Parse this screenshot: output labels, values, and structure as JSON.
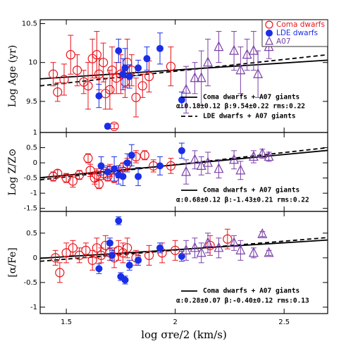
{
  "chart_data": [
    {
      "type": "scatter",
      "y_label": "Log Age (yr)",
      "xlim": [
        1.38,
        2.7
      ],
      "ylim": [
        9.1,
        10.55
      ],
      "xticks": [
        1.5,
        2,
        2.5
      ],
      "show_xtick_labels": false,
      "yticks": [
        9.5,
        10,
        10.5
      ],
      "legend": "upper right",
      "series": [
        {
          "name": "Coma dwarfs",
          "color": "#e8141c",
          "marker": "open-circle",
          "x": [
            1.44,
            1.46,
            1.49,
            1.52,
            1.55,
            1.58,
            1.6,
            1.62,
            1.64,
            1.65,
            1.67,
            1.68,
            1.7,
            1.71,
            1.73,
            1.75,
            1.77,
            1.78,
            1.8,
            1.82,
            1.85,
            1.88,
            1.98,
            1.72
          ],
          "y": [
            9.85,
            9.62,
            9.78,
            10.1,
            9.9,
            9.75,
            9.7,
            10.05,
            10.1,
            9.85,
            10.0,
            9.6,
            9.65,
            9.9,
            9.8,
            9.85,
            9.75,
            10.0,
            9.9,
            9.55,
            9.7,
            9.82,
            9.95,
            9.18
          ],
          "yerr": [
            0.15,
            0.12,
            0.2,
            0.25,
            0.2,
            0.15,
            0.3,
            0.25,
            0.3,
            0.2,
            0.25,
            0.2,
            0.25,
            0.3,
            0.2,
            0.25,
            0.2,
            0.3,
            0.2,
            0.25,
            0.15,
            0.2,
            0.25,
            0.03
          ]
        },
        {
          "name": "LDE dwarfs",
          "color": "#1a2ee8",
          "marker": "filled-circle",
          "x": [
            1.65,
            1.69,
            1.74,
            1.76,
            1.77,
            1.79,
            1.83,
            1.87,
            1.93,
            2.03
          ],
          "y": [
            9.57,
            9.18,
            10.15,
            9.85,
            9.93,
            9.82,
            9.93,
            10.05,
            10.18,
            9.52
          ],
          "yerr": [
            0.15,
            0.03,
            0.15,
            0.2,
            0.25,
            0.15,
            0.1,
            0.15,
            0.2,
            0.1
          ]
        },
        {
          "name": "A07",
          "color": "#7a3fa8",
          "marker": "open-triangle",
          "x": [
            2.05,
            2.09,
            2.12,
            2.15,
            2.2,
            2.27,
            2.3,
            2.33,
            2.36,
            2.38,
            2.43
          ],
          "y": [
            9.65,
            9.8,
            9.8,
            10.0,
            10.2,
            10.15,
            9.9,
            10.1,
            10.15,
            9.85,
            10.2
          ],
          "yerr": [
            0.3,
            0.2,
            0.35,
            0.3,
            0.2,
            0.25,
            0.3,
            0.2,
            0.25,
            0.3,
            0.15
          ]
        }
      ],
      "lines": [
        {
          "label": "Coma dwarfs + A07 giants",
          "style": "solid",
          "x": [
            1.38,
            2.7
          ],
          "y": [
            9.79,
            10.03
          ]
        },
        {
          "label": "LDE dwarfs + A07 giants",
          "style": "dashed",
          "x": [
            1.38,
            2.7
          ],
          "y": [
            9.7,
            10.1
          ]
        }
      ],
      "fit_text": "α:0.18±0.12 β:9.54±0.22 rms:0.22"
    },
    {
      "type": "scatter",
      "y_label": "Log Z/Z⊙",
      "xlim": [
        1.38,
        2.7
      ],
      "ylim": [
        -1.6,
        1.0
      ],
      "xticks": [
        1.5,
        2,
        2.5
      ],
      "show_xtick_labels": false,
      "yticks": [
        -1.5,
        -1,
        -0.5,
        0,
        0.5,
        1
      ],
      "series": [
        {
          "color": "#e8141c",
          "marker": "open-circle",
          "x": [
            1.44,
            1.46,
            1.5,
            1.53,
            1.56,
            1.6,
            1.61,
            1.63,
            1.64,
            1.65,
            1.67,
            1.69,
            1.7,
            1.72,
            1.74,
            1.76,
            1.78,
            1.82,
            1.86,
            1.9,
            1.98
          ],
          "y": [
            -0.45,
            -0.35,
            -0.5,
            -0.6,
            -0.4,
            0.15,
            -0.25,
            -0.5,
            -0.4,
            -0.7,
            -0.35,
            -0.45,
            -0.25,
            -0.5,
            -0.3,
            -0.15,
            -0.05,
            0.2,
            0.25,
            -0.1,
            -0.1
          ],
          "yerr": [
            0.15,
            0.12,
            0.15,
            0.2,
            0.15,
            0.15,
            0.2,
            0.2,
            0.2,
            0.15,
            0.2,
            0.15,
            0.2,
            0.15,
            0.2,
            0.15,
            0.2,
            0.2,
            0.15,
            0.2,
            0.25
          ]
        },
        {
          "color": "#1a2ee8",
          "marker": "filled-circle",
          "x": [
            1.66,
            1.69,
            1.72,
            1.74,
            1.76,
            1.78,
            1.8,
            1.83,
            1.93,
            2.03
          ],
          "y": [
            -0.1,
            -0.3,
            -0.2,
            -0.4,
            -0.45,
            0.0,
            0.25,
            -0.45,
            -0.1,
            0.4
          ],
          "yerr": [
            0.3,
            0.2,
            0.4,
            0.3,
            0.3,
            0.3,
            0.35,
            0.3,
            0.3,
            0.25
          ]
        },
        {
          "color": "#7a3fa8",
          "marker": "open-triangle",
          "x": [
            2.05,
            2.09,
            2.12,
            2.15,
            2.2,
            2.27,
            2.3,
            2.36,
            2.4,
            2.43
          ],
          "y": [
            -0.3,
            0.1,
            -0.1,
            0.0,
            -0.2,
            0.1,
            -0.25,
            0.2,
            0.3,
            0.2
          ],
          "yerr": [
            0.4,
            0.3,
            0.3,
            0.35,
            0.3,
            0.3,
            0.3,
            0.2,
            0.15,
            0.15
          ]
        }
      ],
      "lines": [
        {
          "label": "Coma dwarfs + A07 giants",
          "style": "solid",
          "x": [
            1.38,
            2.7
          ],
          "y": [
            -0.49,
            0.41
          ]
        },
        {
          "style": "dashed",
          "x": [
            1.38,
            2.7
          ],
          "y": [
            -0.56,
            0.5
          ]
        }
      ],
      "fit_text": "α:0.68±0.12 β:-1.43±0.21 rms:0.22"
    },
    {
      "type": "scatter",
      "y_label": "[α/Fe]",
      "x_label": "log σre/2 (km/s)",
      "xlim": [
        1.38,
        2.7
      ],
      "ylim": [
        -1.13,
        0.94
      ],
      "xticks": [
        1.5,
        2,
        2.5
      ],
      "show_xtick_labels": true,
      "yticks": [
        -1,
        -0.5,
        0,
        0.5
      ],
      "series": [
        {
          "color": "#e8141c",
          "marker": "open-circle",
          "x": [
            1.45,
            1.47,
            1.5,
            1.53,
            1.56,
            1.59,
            1.62,
            1.64,
            1.66,
            1.68,
            1.7,
            1.72,
            1.74,
            1.76,
            1.78,
            1.82,
            1.88,
            1.94,
            2.0,
            2.16,
            2.24
          ],
          "y": [
            0.0,
            -0.3,
            0.1,
            0.2,
            0.05,
            0.15,
            -0.05,
            0.2,
            0.05,
            0.25,
            0.1,
            0.0,
            0.15,
            0.1,
            0.2,
            0.0,
            0.05,
            0.1,
            0.15,
            0.25,
            0.38
          ],
          "yerr": [
            0.15,
            0.2,
            0.2,
            0.15,
            0.15,
            0.15,
            0.2,
            0.2,
            0.15,
            0.2,
            0.15,
            0.2,
            0.2,
            0.2,
            0.2,
            0.15,
            0.2,
            0.2,
            0.2,
            0.2,
            0.2
          ]
        },
        {
          "color": "#1a2ee8",
          "marker": "filled-circle",
          "x": [
            1.65,
            1.7,
            1.71,
            1.74,
            1.75,
            1.77,
            1.79,
            1.83,
            1.93,
            2.03
          ],
          "y": [
            -0.22,
            0.3,
            0.05,
            0.75,
            -0.38,
            -0.45,
            -0.15,
            -0.05,
            0.2,
            0.03
          ],
          "yerr": [
            0.1,
            0.1,
            0.1,
            0.08,
            0.08,
            0.08,
            0.1,
            0.1,
            0.1,
            0.1
          ]
        },
        {
          "color": "#7a3fa8",
          "marker": "open-triangle",
          "x": [
            2.05,
            2.09,
            2.12,
            2.15,
            2.2,
            2.27,
            2.3,
            2.36,
            2.4,
            2.43
          ],
          "y": [
            0.15,
            0.2,
            0.1,
            0.3,
            0.2,
            0.3,
            0.15,
            0.1,
            0.48,
            0.1
          ],
          "yerr": [
            0.2,
            0.2,
            0.2,
            0.2,
            0.2,
            0.15,
            0.2,
            0.1,
            0.05,
            0.05
          ]
        }
      ],
      "lines": [
        {
          "label": "Coma dwarfs + A07 giants",
          "style": "solid",
          "x": [
            1.38,
            2.7
          ],
          "y": [
            -0.01,
            0.36
          ]
        },
        {
          "style": "dashed",
          "x": [
            1.38,
            2.7
          ],
          "y": [
            -0.07,
            0.41
          ]
        }
      ],
      "fit_text": "α:0.28±0.07 β:-0.40±0.12 rms:0.13"
    }
  ]
}
